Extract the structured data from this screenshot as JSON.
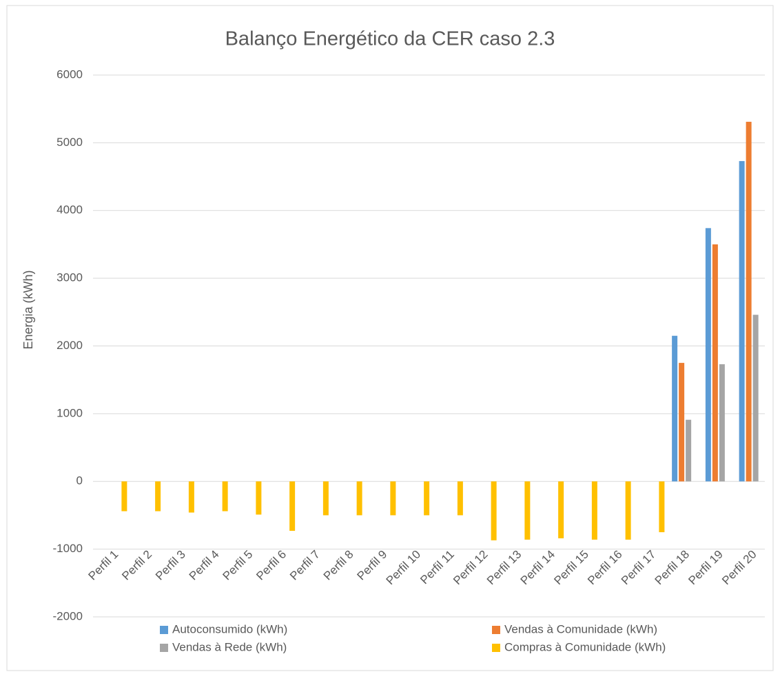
{
  "chart_data": {
    "type": "bar",
    "title": "Balanço Energético da CER caso 2.3",
    "y_label": "Energia (kWh)",
    "categories": [
      "Perfil 1",
      "Perfil 2",
      "Perfil 3",
      "Perfil 4",
      "Perfil 5",
      "Perfil 6",
      "Perfil 7",
      "Perfil 8",
      "Perfil 9",
      "Perfil 10",
      "Perfil 11",
      "Perfil 12",
      "Perfil 13",
      "Perfil 14",
      "Perfil 15",
      "Perfil 16",
      "Perfil 17",
      "Perfil 18",
      "Perfil 19",
      "Perfil 20"
    ],
    "series": [
      {
        "name": "Autoconsumido (kWh)",
        "color": "#5b9bd5",
        "values": [
          0,
          0,
          0,
          0,
          0,
          0,
          0,
          0,
          0,
          0,
          0,
          0,
          0,
          0,
          0,
          0,
          0,
          2150,
          3740,
          4730
        ]
      },
      {
        "name": "Vendas à Comunidade (kWh)",
        "color": "#ed7d31",
        "values": [
          0,
          0,
          0,
          0,
          0,
          0,
          0,
          0,
          0,
          0,
          0,
          0,
          0,
          0,
          0,
          0,
          0,
          1750,
          3500,
          5310
        ]
      },
      {
        "name": "Vendas à Rede (kWh)",
        "color": "#a5a5a5",
        "values": [
          0,
          0,
          0,
          0,
          0,
          0,
          0,
          0,
          0,
          0,
          0,
          0,
          0,
          0,
          0,
          0,
          0,
          910,
          1730,
          2460
        ]
      },
      {
        "name": "Compras à Comunidade (kWh)",
        "color": "#ffc000",
        "values": [
          -440,
          -440,
          -460,
          -440,
          -490,
          -730,
          -500,
          -500,
          -500,
          -500,
          -500,
          -870,
          -860,
          -840,
          -860,
          -860,
          -750,
          0,
          0,
          0
        ]
      }
    ],
    "ylim": [
      -2000,
      6000
    ],
    "yticks": [
      -2000,
      -1000,
      0,
      1000,
      2000,
      3000,
      4000,
      5000,
      6000
    ],
    "grid": true,
    "legend": "bottom"
  }
}
